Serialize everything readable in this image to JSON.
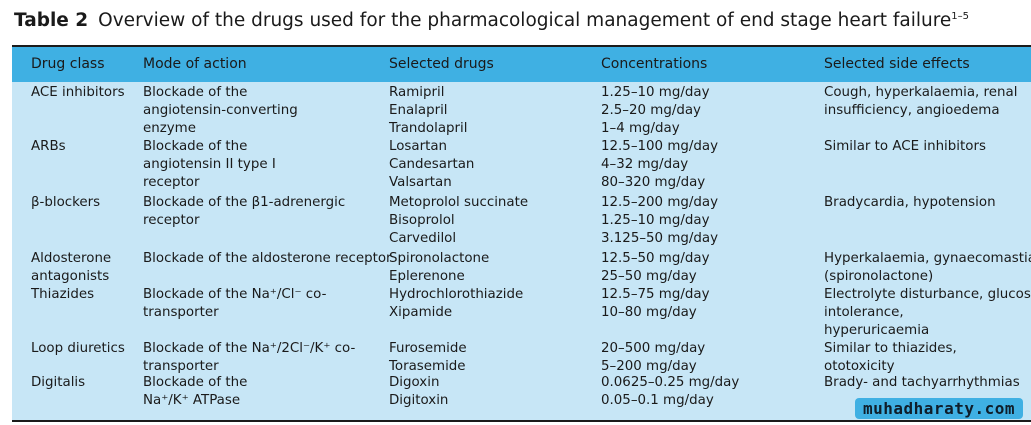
{
  "table": {
    "label": "Table 2",
    "title": "Overview of the drugs used for the pharmacological management of end stage heart failure",
    "title_refs": "1–5",
    "headers": [
      "Drug class",
      "Mode of action",
      "Selected drugs",
      "Concentrations",
      "Selected side effects"
    ],
    "rows": [
      {
        "drug_class": [
          "ACE inhibitors"
        ],
        "mode": [
          "Blockade of the",
          "angiotensin-converting",
          "enzyme"
        ],
        "drugs": [
          "Ramipril",
          "Enalapril",
          "Trandolapril"
        ],
        "conc": [
          "1.25–10 mg/day",
          "2.5–20 mg/day",
          "1–4 mg/day"
        ],
        "side": [
          "Cough, hyperkalaemia, renal",
          "insufficiency, angioedema"
        ]
      },
      {
        "drug_class": [
          "ARBs"
        ],
        "mode": [
          "Blockade of the",
          "angiotensin II type I",
          "receptor"
        ],
        "drugs": [
          "Losartan",
          "Candesartan",
          "Valsartan"
        ],
        "conc": [
          "12.5–100 mg/day",
          "4–32 mg/day",
          "80–320 mg/day"
        ],
        "side": [
          "Similar to ACE inhibitors"
        ]
      },
      {
        "drug_class": [
          "β-blockers"
        ],
        "mode": [
          "Blockade of the β1-adrenergic",
          "receptor"
        ],
        "drugs": [
          "Metoprolol succinate",
          "Bisoprolol",
          "Carvedilol"
        ],
        "conc": [
          "12.5–200 mg/day",
          "1.25–10 mg/day",
          "3.125–50 mg/day"
        ],
        "side": [
          "Bradycardia, hypotension"
        ]
      },
      {
        "drug_class": [
          "Aldosterone",
          "antagonists"
        ],
        "mode": [
          "Blockade of the aldosterone receptor"
        ],
        "drugs": [
          "Spironolactone",
          "Eplerenone"
        ],
        "conc": [
          "12.5–50 mg/day",
          "25–50 mg/day"
        ],
        "side": [
          "Hyperkalaemia, gynaecomastia",
          "(spironolactone)"
        ]
      },
      {
        "drug_class": [
          "Thiazides"
        ],
        "mode": [
          "Blockade of the Na⁺/Cl⁻ co-",
          "transporter"
        ],
        "drugs": [
          "Hydrochlorothiazide",
          "Xipamide"
        ],
        "conc": [
          "12.5–75 mg/day",
          "10–80 mg/day"
        ],
        "side": [
          "Electrolyte disturbance, glucose",
          "intolerance,",
          "hyperuricaemia"
        ]
      },
      {
        "drug_class": [
          "Loop diuretics"
        ],
        "mode": [
          "Blockade of the Na⁺/2Cl⁻/K⁺ co-",
          "transporter"
        ],
        "drugs": [
          "Furosemide",
          "Torasemide"
        ],
        "conc": [
          "20–500 mg/day",
          "5–200 mg/day"
        ],
        "side": [
          "Similar to thiazides,",
          "ototoxicity"
        ]
      },
      {
        "drug_class": [
          "Digitalis"
        ],
        "mode": [
          "Blockade of the",
          "Na⁺/K⁺ ATPase"
        ],
        "drugs": [
          "Digoxin",
          "Digitoxin"
        ],
        "conc": [
          "0.0625–0.25 mg/day",
          "0.05–0.1 mg/day"
        ],
        "side": [
          "Brady- and tachyarrhythmias"
        ]
      }
    ]
  },
  "watermark": "muhadharaty.com",
  "colors": {
    "header_bg": "#3fb0e3",
    "body_bg": "#c7e6f6",
    "rule": "#1b1b1b"
  }
}
